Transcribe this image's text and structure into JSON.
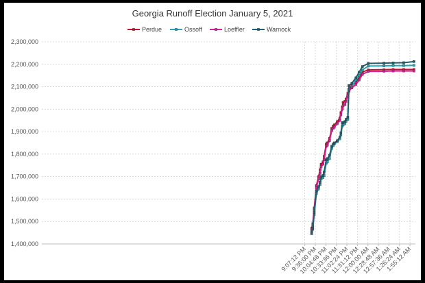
{
  "chart_data": {
    "type": "line",
    "title": "Georgia Runoff Election January 5, 2021",
    "xlabel": "",
    "ylabel": "",
    "x_tick_labels": [
      "9:07:12 PM",
      "9:36:00 PM",
      "10:04:48 PM",
      "10:33:36 PM",
      "11:02:24 PM",
      "11:31:12 PM",
      "12:00:00 AM",
      "12:28:48 AM",
      "12:57:36 AM",
      "1:26:24 AM",
      "1:55:12 AM"
    ],
    "y_tick_labels": [
      "1,400,000",
      "1,500,000",
      "1,600,000",
      "1,700,000",
      "1,800,000",
      "1,900,000",
      "2,000,000",
      "2,100,000",
      "2,200,000",
      "2,300,000"
    ],
    "ylim": [
      1400000,
      2300000
    ],
    "grid": true,
    "legend_position": "top",
    "x": [
      "9:26 PM",
      "9:29 PM",
      "9:33 PM",
      "9:39 PM",
      "9:45 PM",
      "9:49 PM",
      "9:52 PM",
      "9:57 PM",
      "10:00 PM",
      "10:06 PM",
      "10:09 PM",
      "10:15 PM",
      "10:21 PM",
      "10:25 PM",
      "10:28 PM",
      "10:36 PM",
      "10:43 PM",
      "10:46 PM",
      "10:50 PM",
      "10:52 PM",
      "10:57 PM",
      "11:00 PM",
      "11:05 PM",
      "11:08 PM",
      "11:16 PM",
      "11:27 PM",
      "11:36 PM",
      "11:45 PM",
      "12:01 AM",
      "12:44 AM",
      "1:09 AM",
      "1:38 AM",
      "2:06 AM"
    ],
    "series": [
      {
        "name": "Perdue",
        "color": "#c8102e",
        "values": [
          1470000,
          1490000,
          1560000,
          1660000,
          1700000,
          1730000,
          1755000,
          1765000,
          1790000,
          1845000,
          1850000,
          1870000,
          1915000,
          1925000,
          1930000,
          1945000,
          1960000,
          1985000,
          2010000,
          2030000,
          2035000,
          2045000,
          2070000,
          2090000,
          2105000,
          2120000,
          2140000,
          2165000,
          2175000,
          2176000,
          2177000,
          2177000,
          2177000
        ]
      },
      {
        "name": "Ossoff",
        "color": "#2aa3b5",
        "values": [
          1445000,
          1465000,
          1530000,
          1625000,
          1645000,
          1665000,
          1690000,
          1695000,
          1705000,
          1760000,
          1765000,
          1780000,
          1825000,
          1838000,
          1845000,
          1855000,
          1868000,
          1885000,
          1925000,
          1930000,
          1935000,
          1945000,
          1955000,
          2080000,
          2100000,
          2130000,
          2150000,
          2175000,
          2192000,
          2193000,
          2194000,
          2194000,
          2195000
        ]
      },
      {
        "name": "Loeffler",
        "color": "#d61f9b",
        "values": [
          1460000,
          1480000,
          1550000,
          1650000,
          1690000,
          1715000,
          1745000,
          1755000,
          1775000,
          1835000,
          1840000,
          1860000,
          1905000,
          1915000,
          1920000,
          1935000,
          1950000,
          1975000,
          2000000,
          2015000,
          2020000,
          2035000,
          2060000,
          2080000,
          2095000,
          2110000,
          2130000,
          2155000,
          2168000,
          2169000,
          2170000,
          2170000,
          2170000
        ]
      },
      {
        "name": "Warnock",
        "color": "#1f5f6e",
        "values": [
          1450000,
          1470000,
          1540000,
          1635000,
          1655000,
          1675000,
          1700000,
          1705000,
          1720000,
          1775000,
          1780000,
          1795000,
          1835000,
          1845000,
          1850000,
          1860000,
          1875000,
          1895000,
          1940000,
          1940000,
          1945000,
          1955000,
          1965000,
          2105000,
          2115000,
          2140000,
          2165000,
          2190000,
          2204000,
          2205000,
          2206000,
          2207000,
          2212000
        ]
      }
    ]
  }
}
